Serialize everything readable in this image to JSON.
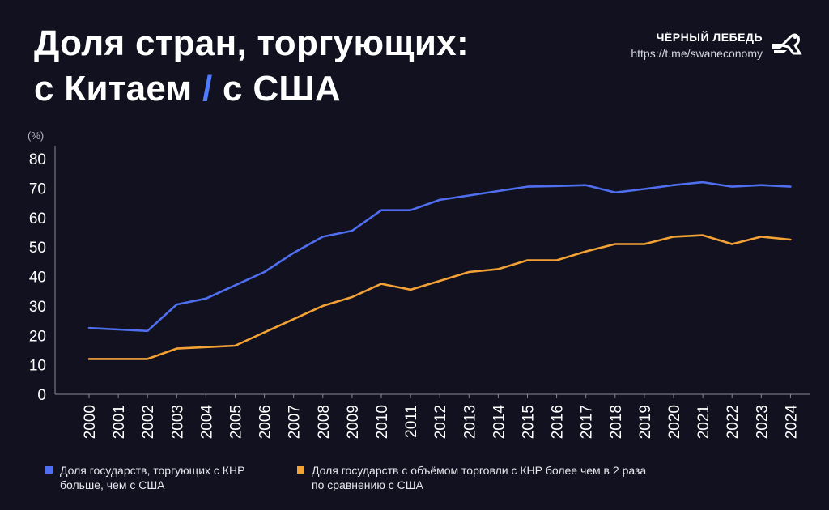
{
  "header": {
    "title_line1": "Доля стран, торгующих:",
    "title_line2_part1": "с Китаем ",
    "title_slash": "/",
    "title_line2_part2": " с США"
  },
  "brand": {
    "name": "ЧЁРНЫЙ ЛЕБЕДЬ",
    "url": "https://t.me/swaneconomy",
    "logo_icon": "black-swan-logo-icon"
  },
  "chart_data": {
    "type": "line",
    "ylabel": "(%)",
    "xlabel": "",
    "ylim": [
      0,
      80
    ],
    "yticks": [
      0,
      10,
      20,
      30,
      40,
      50,
      60,
      70,
      80
    ],
    "grid": false,
    "legend_position": "bottom",
    "x": [
      "2000",
      "2001",
      "2002",
      "2003",
      "2004",
      "2005",
      "2006",
      "2007",
      "2008",
      "2009",
      "2010",
      "2011",
      "2012",
      "2013",
      "2014",
      "2015",
      "2016",
      "2017",
      "2018",
      "2019",
      "2020",
      "2021",
      "2022",
      "2023",
      "2024"
    ],
    "series": [
      {
        "name": "Доля государств, торгующих с КНР больше, чем с США",
        "color": "#4f6ef0",
        "values": [
          22.5,
          22,
          21.5,
          30.5,
          32.5,
          37,
          41.5,
          48,
          53.5,
          55.5,
          62.5,
          62.5,
          66,
          67.5,
          69,
          70.5,
          70.7,
          71,
          68.5,
          69.7,
          71,
          72,
          70.5,
          71,
          70.5
        ]
      },
      {
        "name": "Доля государств с объёмом торговли с КНР более чем в 2 раза по сравнению с США",
        "color": "#f4a235",
        "values": [
          12,
          12,
          12,
          15.5,
          16,
          16.5,
          21,
          25.5,
          30,
          33,
          37.5,
          35.5,
          38.5,
          41.5,
          42.5,
          45.5,
          45.5,
          48.5,
          51,
          51,
          53.5,
          54,
          51,
          53.5,
          52.5
        ]
      }
    ]
  }
}
